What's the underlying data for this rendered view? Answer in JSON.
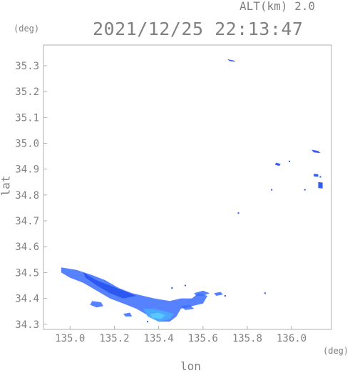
{
  "header": {
    "altitude_label": "ALT(km) 2.0",
    "timestamp": "2021/12/25 22:13:47",
    "lat_unit": "(deg)",
    "lon_unit": "(deg)"
  },
  "axes": {
    "xlabel": "lon",
    "ylabel": "lat",
    "xticks": [
      "135.0",
      "135.2",
      "135.4",
      "135.6",
      "135.8",
      "136.0"
    ],
    "yticks": [
      "35.3",
      "35.2",
      "35.1",
      "35.0",
      "34.9",
      "34.8",
      "34.7",
      "34.6",
      "34.5",
      "34.4",
      "34.3"
    ],
    "xlim": [
      134.88,
      136.18
    ],
    "ylim": [
      34.28,
      35.38
    ]
  },
  "colors": {
    "frame": "#b0b0b0",
    "text": "#808080",
    "echo_weak": "#3a6cff",
    "echo_mid": "#2a55f0",
    "echo_light": "#4aa8ff",
    "echo_cyan": "#59c9ff"
  },
  "chart_data": {
    "type": "scatter",
    "title": "2021/12/25 22:13:47",
    "xlabel": "lon",
    "ylabel": "lat",
    "xlim": [
      134.88,
      136.18
    ],
    "ylim": [
      34.28,
      35.38
    ],
    "grid": false,
    "echo_regions": [
      {
        "name": "",
        "level": "weak",
        "outline": [
          [
            134.96,
            34.52
          ],
          [
            135.03,
            34.51
          ],
          [
            135.1,
            34.49
          ],
          [
            135.16,
            34.47
          ],
          [
            135.22,
            34.44
          ],
          [
            135.28,
            34.42
          ],
          [
            135.33,
            34.41
          ],
          [
            135.38,
            34.4
          ],
          [
            135.45,
            34.39
          ],
          [
            135.5,
            34.4
          ],
          [
            135.55,
            34.4
          ],
          [
            135.58,
            34.42
          ],
          [
            135.62,
            34.41
          ],
          [
            135.6,
            34.38
          ],
          [
            135.55,
            34.37
          ],
          [
            135.5,
            34.36
          ],
          [
            135.48,
            34.33
          ],
          [
            135.45,
            34.31
          ],
          [
            135.4,
            34.31
          ],
          [
            135.36,
            34.33
          ],
          [
            135.3,
            34.36
          ],
          [
            135.24,
            34.38
          ],
          [
            135.18,
            34.4
          ],
          [
            135.12,
            34.43
          ],
          [
            135.06,
            34.46
          ],
          [
            135.0,
            34.48
          ],
          [
            134.96,
            34.5
          ]
        ]
      },
      {
        "name": "",
        "level": "mid",
        "outline": [
          [
            135.06,
            34.5
          ],
          [
            135.12,
            34.47
          ],
          [
            135.18,
            34.45
          ],
          [
            135.24,
            34.43
          ],
          [
            135.3,
            34.41
          ],
          [
            135.24,
            34.4
          ],
          [
            135.18,
            34.42
          ],
          [
            135.12,
            34.45
          ],
          [
            135.07,
            34.48
          ]
        ]
      },
      {
        "name": "",
        "level": "light",
        "outline": [
          [
            135.33,
            34.36
          ],
          [
            135.38,
            34.36
          ],
          [
            135.43,
            34.35
          ],
          [
            135.47,
            34.34
          ],
          [
            135.45,
            34.32
          ],
          [
            135.4,
            34.31
          ],
          [
            135.35,
            34.33
          ]
        ]
      },
      {
        "name": "",
        "level": "cyan",
        "outline": [
          [
            135.36,
            34.34
          ],
          [
            135.4,
            34.345
          ],
          [
            135.43,
            34.335
          ],
          [
            135.41,
            34.32
          ],
          [
            135.37,
            34.325
          ]
        ]
      },
      {
        "name": "",
        "level": "weak",
        "outline": [
          [
            135.56,
            34.42
          ],
          [
            135.6,
            34.43
          ],
          [
            135.63,
            34.42
          ],
          [
            135.6,
            34.41
          ],
          [
            135.57,
            34.41
          ]
        ]
      },
      {
        "name": "",
        "level": "weak",
        "outline": [
          [
            135.65,
            34.42
          ],
          [
            135.68,
            34.425
          ],
          [
            135.69,
            34.415
          ],
          [
            135.66,
            34.41
          ]
        ]
      },
      {
        "name": "",
        "level": "weak",
        "outline": [
          [
            135.1,
            34.39
          ],
          [
            135.14,
            34.385
          ],
          [
            135.15,
            34.37
          ],
          [
            135.12,
            34.365
          ],
          [
            135.09,
            34.375
          ]
        ]
      },
      {
        "name": "",
        "level": "weak",
        "outline": [
          [
            135.24,
            34.34
          ],
          [
            135.27,
            34.345
          ],
          [
            135.28,
            34.33
          ],
          [
            135.25,
            34.33
          ]
        ]
      },
      {
        "name": "",
        "level": "weak",
        "outline": [
          [
            135.5,
            34.37
          ],
          [
            135.54,
            34.375
          ],
          [
            135.56,
            34.36
          ],
          [
            135.52,
            34.355
          ]
        ]
      },
      {
        "name": "",
        "level": "mid",
        "outline": [
          [
            135.71,
            35.325
          ],
          [
            135.74,
            35.32
          ],
          [
            135.745,
            35.315
          ],
          [
            135.72,
            35.318
          ]
        ]
      },
      {
        "name": "",
        "level": "mid",
        "outline": [
          [
            136.09,
            34.975
          ],
          [
            136.12,
            34.97
          ],
          [
            136.13,
            34.962
          ],
          [
            136.1,
            34.965
          ]
        ]
      },
      {
        "name": "",
        "level": "mid",
        "outline": [
          [
            135.93,
            34.925
          ],
          [
            135.95,
            34.92
          ],
          [
            135.945,
            34.912
          ],
          [
            135.925,
            34.917
          ]
        ]
      },
      {
        "name": "",
        "level": "mid",
        "outline": [
          [
            136.12,
            34.85
          ],
          [
            136.14,
            34.848
          ],
          [
            136.14,
            34.825
          ],
          [
            136.12,
            34.827
          ]
        ]
      },
      {
        "name": "",
        "level": "mid",
        "outline": [
          [
            136.1,
            34.882
          ],
          [
            136.12,
            34.88
          ],
          [
            136.12,
            34.87
          ],
          [
            136.1,
            34.872
          ]
        ]
      }
    ],
    "speckles": [
      [
        135.76,
        34.73
      ],
      [
        135.91,
        34.82
      ],
      [
        135.99,
        34.93
      ],
      [
        136.06,
        34.82
      ],
      [
        136.13,
        34.87
      ],
      [
        135.7,
        34.41
      ],
      [
        135.88,
        34.42
      ],
      [
        135.46,
        34.44
      ],
      [
        135.52,
        34.45
      ],
      [
        135.35,
        34.31
      ]
    ]
  }
}
